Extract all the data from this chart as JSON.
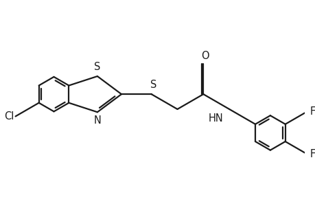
{
  "background_color": "#ffffff",
  "line_color": "#1a1a1a",
  "line_width": 1.6,
  "font_size": 10.5,
  "figsize": [
    4.6,
    3.0
  ],
  "dpi": 100,
  "xlim": [
    -2.8,
    5.8
  ],
  "ylim": [
    -2.5,
    2.0
  ]
}
